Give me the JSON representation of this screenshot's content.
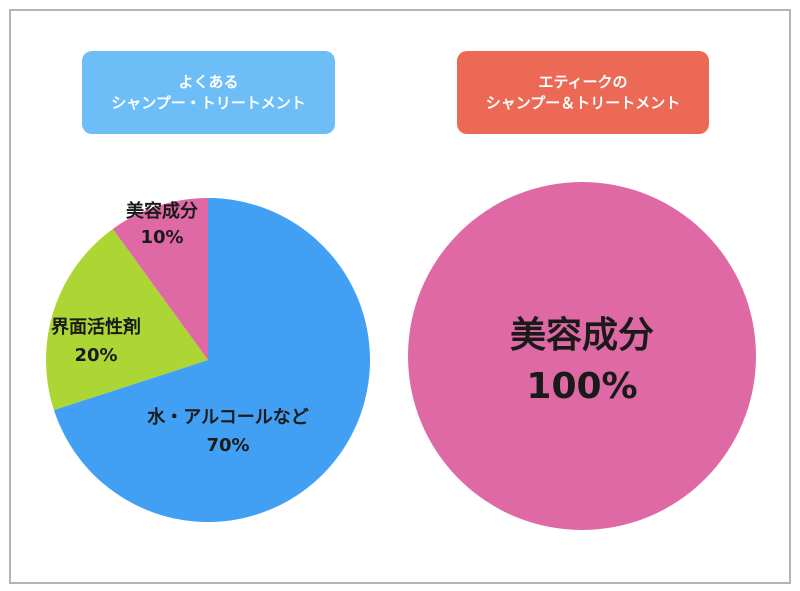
{
  "chart_data": [
    {
      "type": "pie",
      "title_lines": [
        "よくある",
        "シャンプー・トリートメント"
      ],
      "title_bg": "#6dbdf7",
      "slices": [
        {
          "label": "水・アルコールなど",
          "value": 70,
          "value_text": "70%",
          "color": "#42a0f4"
        },
        {
          "label": "界面活性剤",
          "value": 20,
          "value_text": "20%",
          "color": "#acd633"
        },
        {
          "label": "美容成分",
          "value": 10,
          "value_text": "10%",
          "color": "#de69a4"
        }
      ]
    },
    {
      "type": "pie",
      "title_lines": [
        "エティークの",
        "シャンプー＆トリートメント"
      ],
      "title_bg": "#ec6a55",
      "slices": [
        {
          "label": "美容成分",
          "value": 100,
          "value_text": "100%",
          "color": "#de69a4"
        }
      ]
    }
  ]
}
